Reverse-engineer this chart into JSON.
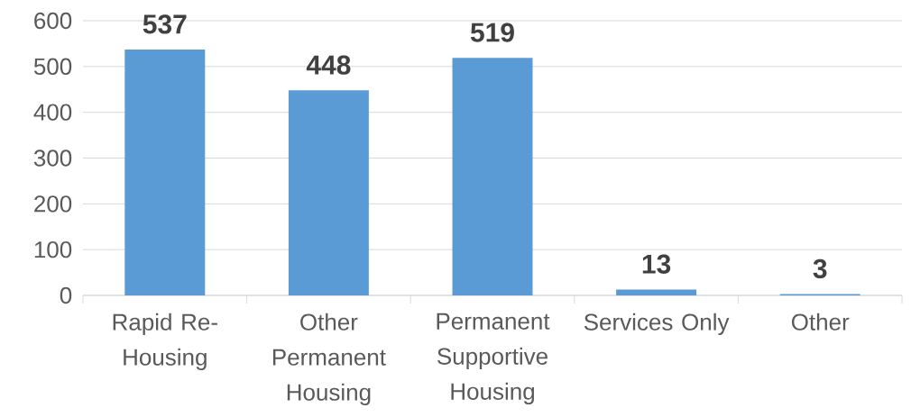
{
  "chart_data": {
    "type": "bar",
    "categories": [
      "Rapid Re-Housing",
      "Other Permanent Housing",
      "Permanent Supportive Housing",
      "Services Only",
      "Other"
    ],
    "values": [
      537,
      448,
      519,
      13,
      3
    ],
    "color": "#5b9bd5",
    "ylim": [
      0,
      600
    ],
    "yticks": [
      0,
      100,
      200,
      300,
      400,
      500,
      600
    ],
    "grid": "y",
    "data_labels": true
  }
}
